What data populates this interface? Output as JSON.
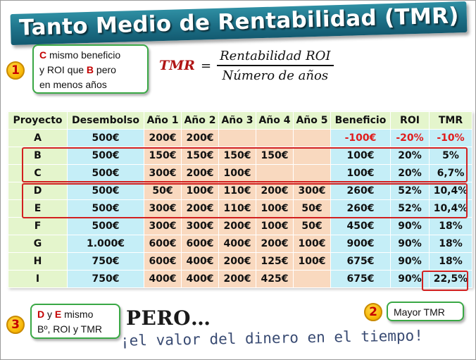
{
  "title": "Tanto Medio de Rentabilidad (TMR)",
  "formula": {
    "lhs": "TMR",
    "equals": "=",
    "numerator": "Rentabilidad ROI",
    "denominator": "Número de años"
  },
  "callouts": {
    "one": {
      "badge": "1",
      "c_letter": "C",
      "text_a": " mismo beneficio",
      "text_b": "y ROI que ",
      "b_letter": "B",
      "text_c": " pero",
      "text_d": "en menos años"
    },
    "two": {
      "badge": "2",
      "text": "Mayor TMR"
    },
    "three": {
      "badge": "3",
      "d_letter": "D",
      "y": " y ",
      "e_letter": "E",
      "text_a": " mismo",
      "text_b": "Bº, ROI y TMR"
    }
  },
  "table": {
    "headers": [
      "Proyecto",
      "Desembolso",
      "Año 1",
      "Año 2",
      "Año 3",
      "Año 4",
      "Año 5",
      "Beneficio",
      "ROI",
      "TMR"
    ],
    "rows": [
      [
        "A",
        "500€",
        "200€",
        "200€",
        "",
        "",
        "",
        "-100€",
        "-20%",
        "-10%"
      ],
      [
        "B",
        "500€",
        "150€",
        "150€",
        "150€",
        "150€",
        "",
        "100€",
        "20%",
        "5%"
      ],
      [
        "C",
        "500€",
        "300€",
        "200€",
        "100€",
        "",
        "",
        "100€",
        "20%",
        "6,7%"
      ],
      [
        "D",
        "500€",
        "50€",
        "100€",
        "110€",
        "200€",
        "300€",
        "260€",
        "52%",
        "10,4%"
      ],
      [
        "E",
        "500€",
        "300€",
        "200€",
        "110€",
        "100€",
        "50€",
        "260€",
        "52%",
        "10,4%"
      ],
      [
        "F",
        "500€",
        "300€",
        "300€",
        "200€",
        "100€",
        "50€",
        "450€",
        "90%",
        "18%"
      ],
      [
        "G",
        "1.000€",
        "600€",
        "600€",
        "400€",
        "200€",
        "100€",
        "900€",
        "90%",
        "18%"
      ],
      [
        "H",
        "750€",
        "600€",
        "400€",
        "200€",
        "125€",
        "100€",
        "675€",
        "90%",
        "18%"
      ],
      [
        "I",
        "750€",
        "400€",
        "400€",
        "200€",
        "425€",
        "",
        "675€",
        "90%",
        "22,5%"
      ]
    ]
  },
  "bottom": {
    "pero": "PERO…",
    "valor": "¡el valor del dinero en el tiempo!"
  },
  "colors": {
    "title_bg": "#1c6f86",
    "header_bg": "#e4f5cc",
    "cyan_cell": "#c5eef7",
    "peach_cell": "#f9d9bf",
    "highlight_red": "#d22020",
    "callout_border": "#3aa845",
    "badge_yellow": "#f7b500"
  }
}
